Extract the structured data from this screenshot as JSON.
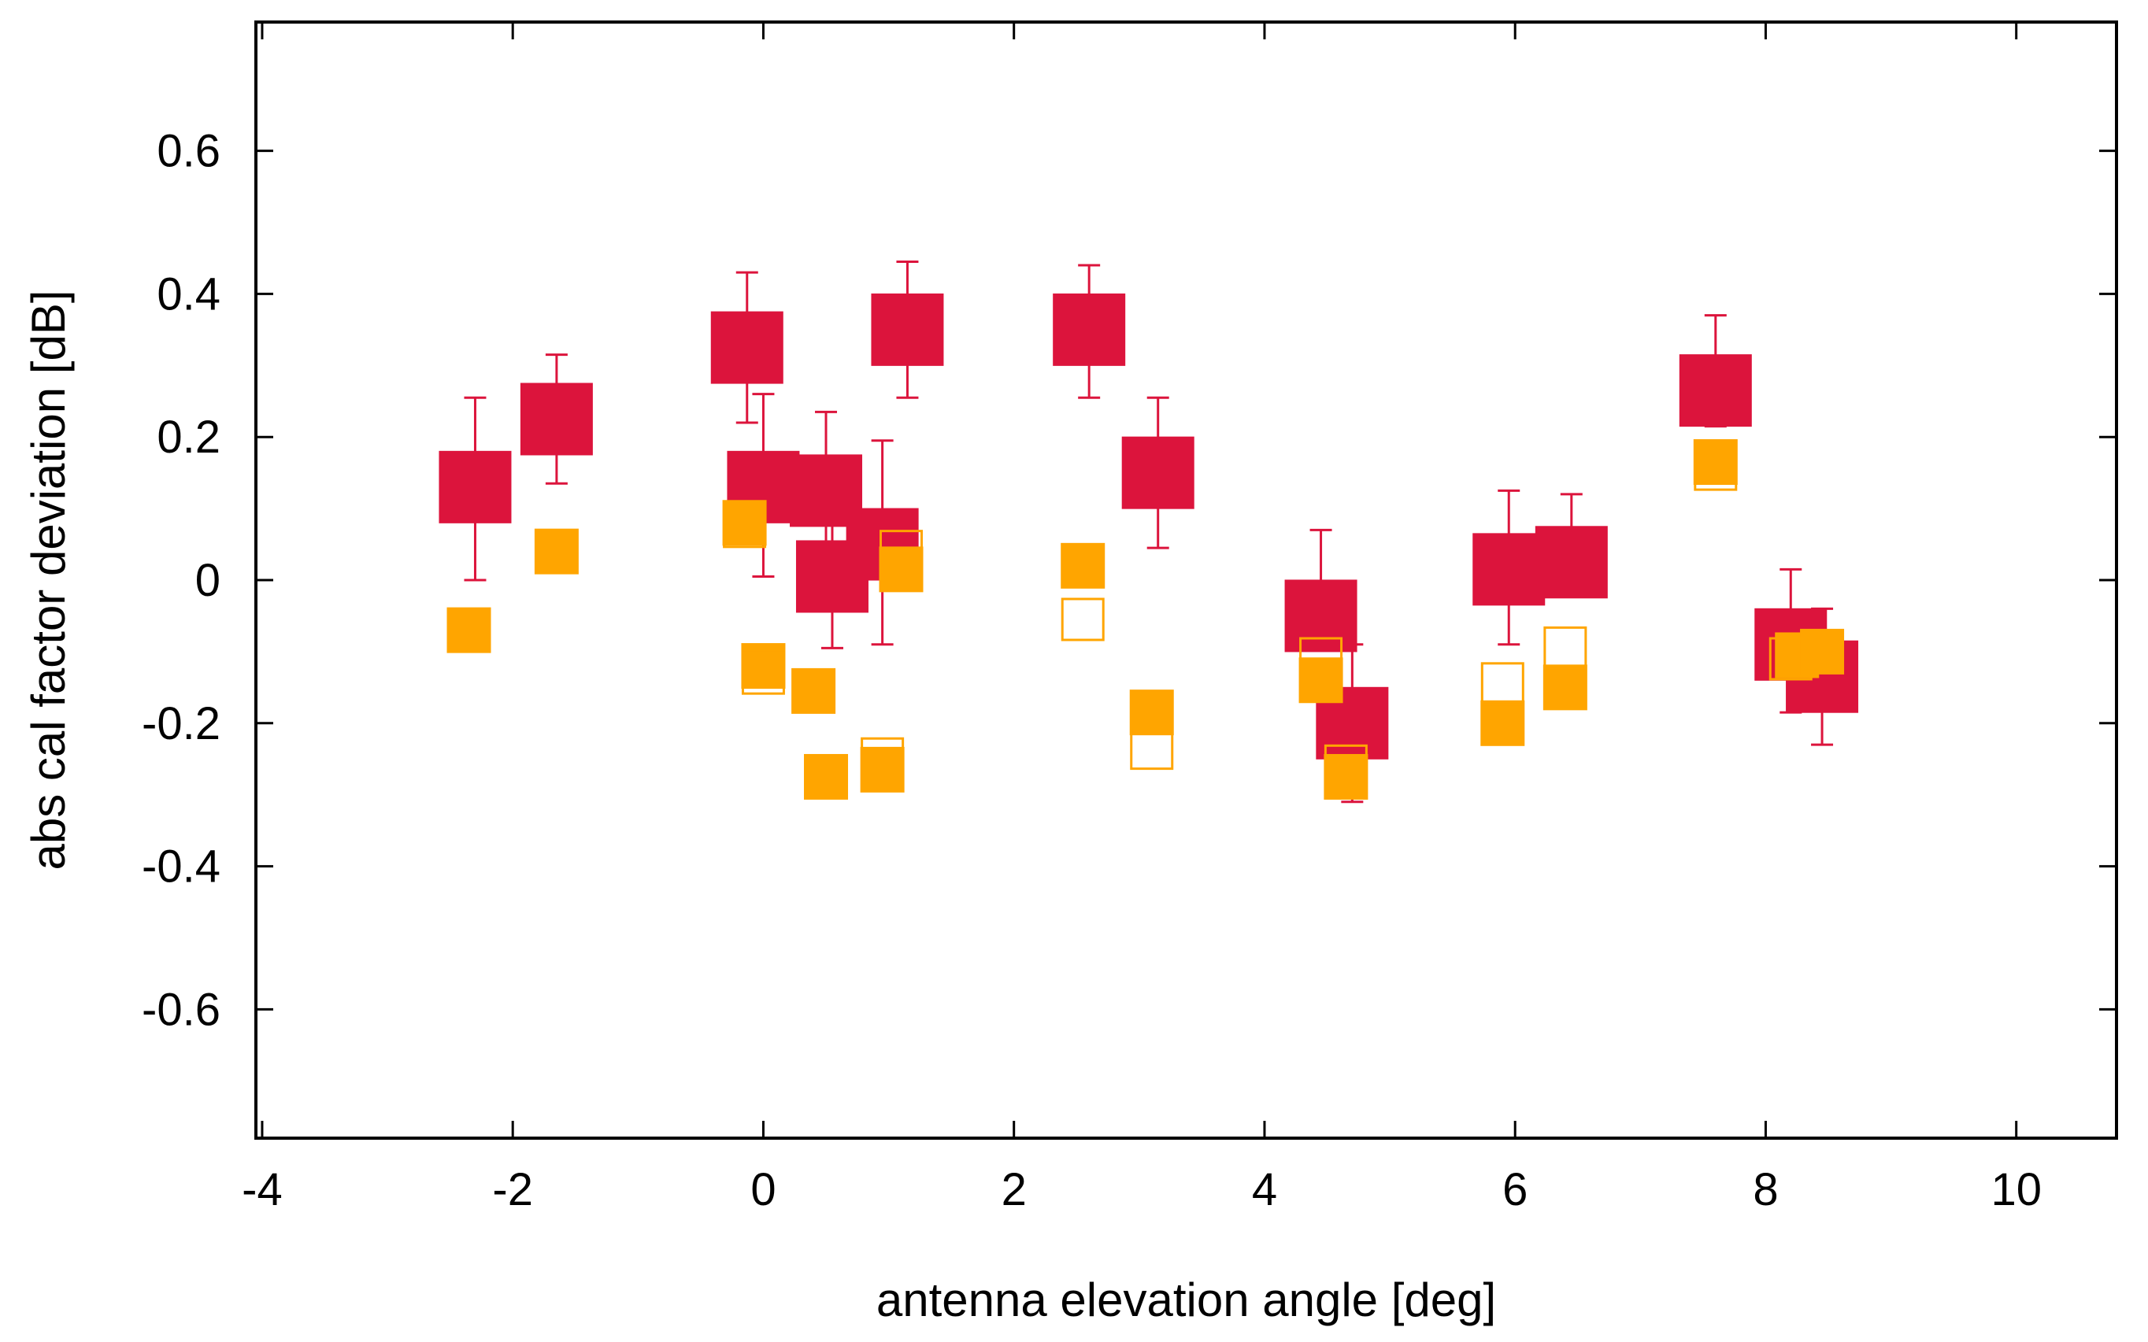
{
  "chart_data": {
    "type": "scatter",
    "title": "",
    "xlabel": "antenna elevation angle [deg]",
    "ylabel": "abs cal factor deviation [dB]",
    "xlim": [
      -4.05,
      10.8
    ],
    "ylim": [
      -0.78,
      0.78
    ],
    "xticks": [
      -4,
      -2,
      0,
      2,
      4,
      6,
      8,
      10
    ],
    "yticks": [
      -0.6,
      -0.4,
      -0.2,
      0,
      0.2,
      0.4,
      0.6
    ],
    "xtick_labels": [
      "-4",
      "-2",
      "0",
      "2",
      "4",
      "6",
      "8",
      "10"
    ],
    "ytick_labels": [
      "-0.6",
      "-0.4",
      "-0.2",
      "0",
      "0.2",
      "0.4",
      "0.6"
    ],
    "grid": false,
    "colors": {
      "crimson": "#dc143c",
      "orange": "#ffa500",
      "axis": "#000000"
    },
    "series": [
      {
        "name": "crimson filled squares with error bars",
        "marker": "filled-square-large",
        "color": "#dc143c",
        "points": [
          {
            "x": -2.3,
            "y": 0.13,
            "err_low": 0.0,
            "err_high": 0.255
          },
          {
            "x": -1.65,
            "y": 0.225,
            "err_low": 0.135,
            "err_high": 0.315
          },
          {
            "x": -0.13,
            "y": 0.325,
            "err_low": 0.22,
            "err_high": 0.43
          },
          {
            "x": 0.0,
            "y": 0.13,
            "err_low": 0.005,
            "err_high": 0.26
          },
          {
            "x": 0.5,
            "y": 0.125,
            "err_low": 0.01,
            "err_high": 0.235
          },
          {
            "x": 0.55,
            "y": 0.005,
            "err_low": -0.095,
            "err_high": 0.095
          },
          {
            "x": 0.95,
            "y": 0.05,
            "err_low": -0.09,
            "err_high": 0.195
          },
          {
            "x": 1.15,
            "y": 0.35,
            "err_low": 0.255,
            "err_high": 0.445
          },
          {
            "x": 2.6,
            "y": 0.35,
            "err_low": 0.255,
            "err_high": 0.44
          },
          {
            "x": 3.15,
            "y": 0.15,
            "err_low": 0.045,
            "err_high": 0.255
          },
          {
            "x": 4.45,
            "y": -0.05,
            "err_low": -0.09,
            "err_high": 0.07
          },
          {
            "x": 4.7,
            "y": -0.2,
            "err_low": -0.31,
            "err_high": -0.09
          },
          {
            "x": 5.95,
            "y": 0.015,
            "err_low": -0.09,
            "err_high": 0.125
          },
          {
            "x": 6.45,
            "y": 0.025,
            "err_low": -0.02,
            "err_high": 0.12
          },
          {
            "x": 7.6,
            "y": 0.265,
            "err_low": 0.215,
            "err_high": 0.37
          },
          {
            "x": 8.2,
            "y": -0.09,
            "err_low": -0.185,
            "err_high": 0.015
          },
          {
            "x": 8.45,
            "y": -0.135,
            "err_low": -0.23,
            "err_high": -0.04
          }
        ]
      },
      {
        "name": "orange filled squares",
        "marker": "filled-square-small",
        "color": "#ffa500",
        "points": [
          {
            "x": -2.35,
            "y": -0.07
          },
          {
            "x": -1.65,
            "y": 0.04
          },
          {
            "x": -0.15,
            "y": 0.08
          },
          {
            "x": 0.0,
            "y": -0.12
          },
          {
            "x": 0.4,
            "y": -0.155
          },
          {
            "x": 0.5,
            "y": -0.275
          },
          {
            "x": 0.95,
            "y": -0.265
          },
          {
            "x": 1.1,
            "y": 0.015
          },
          {
            "x": 2.55,
            "y": 0.02
          },
          {
            "x": 3.1,
            "y": -0.185
          },
          {
            "x": 4.45,
            "y": -0.14
          },
          {
            "x": 4.65,
            "y": -0.275
          },
          {
            "x": 5.9,
            "y": -0.2
          },
          {
            "x": 6.4,
            "y": -0.15
          },
          {
            "x": 7.6,
            "y": 0.165
          },
          {
            "x": 8.25,
            "y": -0.105
          },
          {
            "x": 8.45,
            "y": -0.1
          }
        ]
      },
      {
        "name": "orange open squares",
        "marker": "open-square",
        "color": "#ffa500",
        "points": [
          {
            "x": -1.65,
            "y": 0.04
          },
          {
            "x": -0.15,
            "y": 0.075
          },
          {
            "x": 0.0,
            "y": -0.13
          },
          {
            "x": 0.95,
            "y": -0.25
          },
          {
            "x": 1.1,
            "y": 0.04
          },
          {
            "x": 2.55,
            "y": -0.055
          },
          {
            "x": 3.1,
            "y": -0.235
          },
          {
            "x": 4.45,
            "y": -0.11
          },
          {
            "x": 4.65,
            "y": -0.26
          },
          {
            "x": 5.9,
            "y": -0.145
          },
          {
            "x": 6.4,
            "y": -0.095
          },
          {
            "x": 7.6,
            "y": 0.155
          },
          {
            "x": 8.2,
            "y": -0.11
          }
        ]
      }
    ]
  }
}
